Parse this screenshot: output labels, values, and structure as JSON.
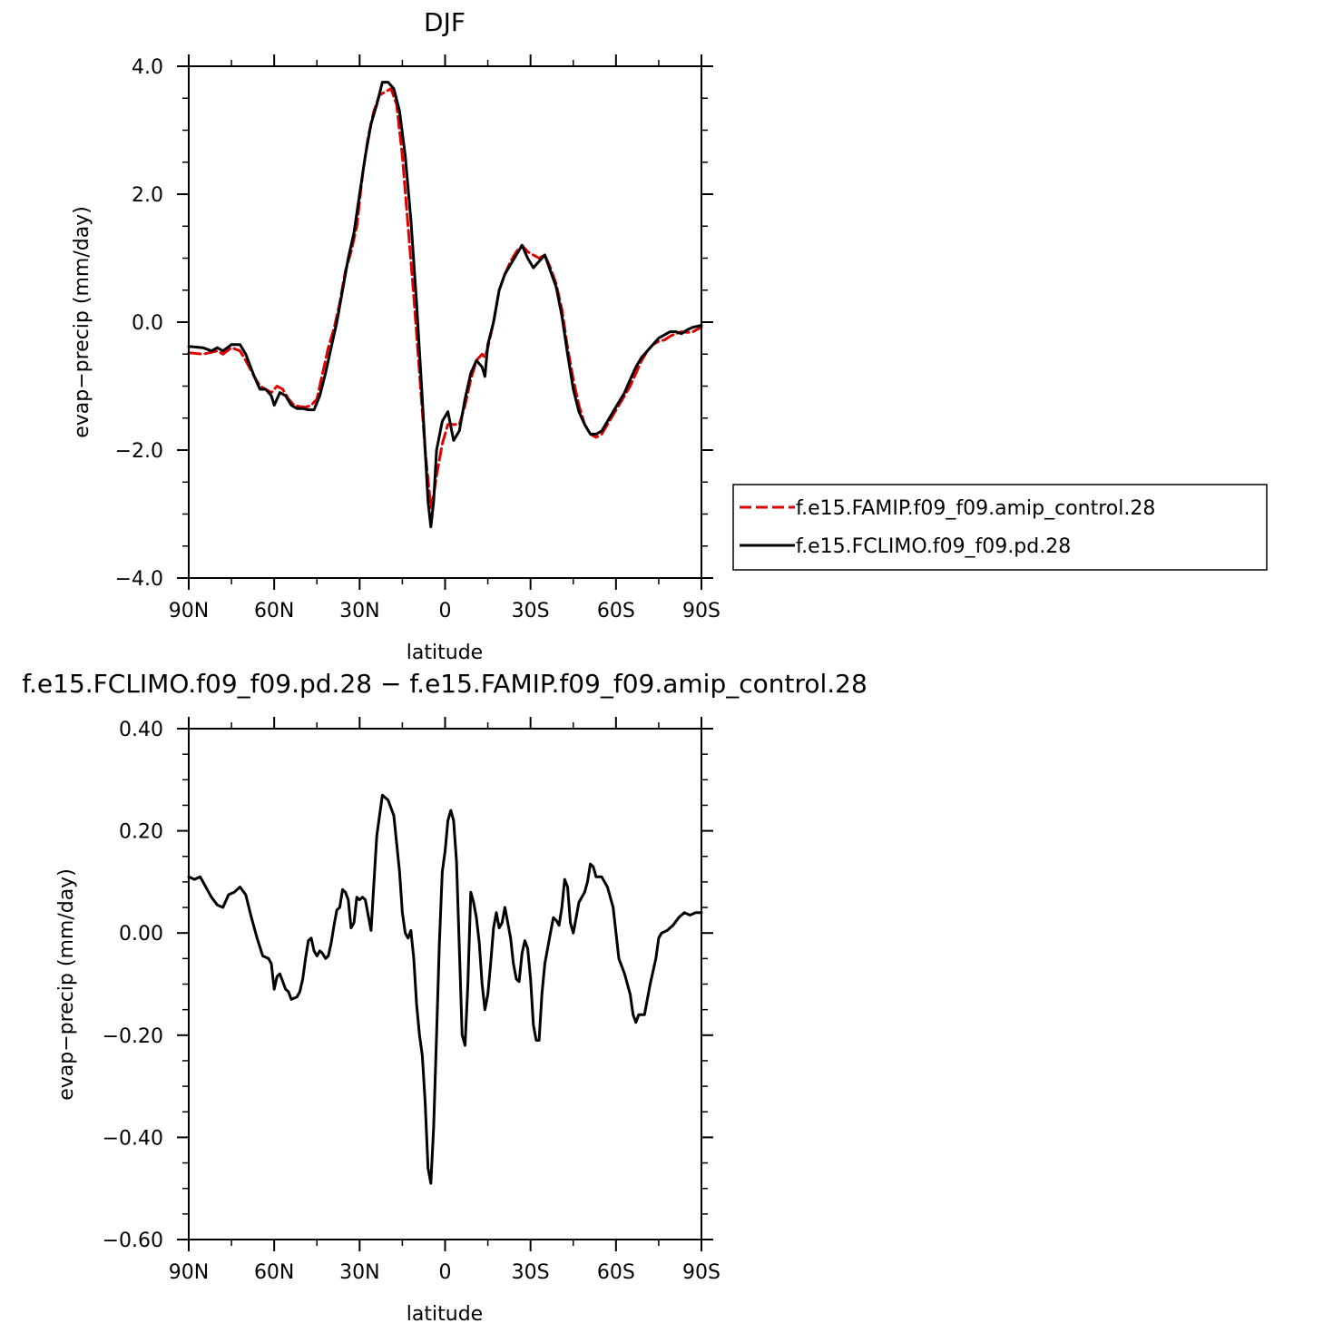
{
  "colors": {
    "background": "#ffffff",
    "axes": "#000000",
    "series_control": "#e00000",
    "series_pd": "#000000"
  },
  "chart_data": [
    {
      "type": "line",
      "title": "DJF",
      "xlabel": "latitude",
      "ylabel": "evap−precip (mm/day)",
      "xlim": [
        -90,
        90
      ],
      "ylim": [
        -4.0,
        4.0
      ],
      "xticks": [
        -90,
        -60,
        -30,
        0,
        30,
        60,
        90
      ],
      "xtick_labels": [
        "90N",
        "60N",
        "30N",
        "0",
        "30S",
        "60S",
        "90S"
      ],
      "yticks": [
        -4,
        -2,
        0,
        2,
        4
      ],
      "ytick_labels": [
        "−4.0",
        "−2.0",
        "0.0",
        "2.0",
        "4.0"
      ],
      "grid": false,
      "legend": "right, outside plot",
      "series": [
        {
          "name": "f.e15.FAMIP.f09_f09.amip_control.28",
          "style": "dashed",
          "color": "#e00000",
          "x": [
            -90,
            -85,
            -80,
            -78,
            -75,
            -72,
            -70,
            -67,
            -65,
            -63,
            -61,
            -59,
            -57,
            -55,
            -53,
            -51,
            -49,
            -47,
            -45,
            -43,
            -41,
            -39,
            -37,
            -35,
            -33,
            -31,
            -29,
            -27,
            -25,
            -23,
            -21,
            -19,
            -17,
            -15,
            -13,
            -11,
            -9,
            -7,
            -5,
            -4,
            -3,
            -1,
            1,
            3,
            5,
            7,
            9,
            11,
            13,
            14,
            15,
            17,
            19,
            21,
            23,
            25,
            27,
            29,
            31,
            33,
            35,
            37,
            39,
            41,
            43,
            45,
            47,
            49,
            51,
            53,
            55,
            57,
            59,
            61,
            63,
            65,
            67,
            69,
            71,
            73,
            75,
            77,
            79,
            81,
            83,
            85,
            87,
            89,
            90
          ],
          "y": [
            -0.48,
            -0.5,
            -0.45,
            -0.5,
            -0.4,
            -0.45,
            -0.6,
            -0.85,
            -1.0,
            -1.05,
            -1.1,
            -1.0,
            -1.05,
            -1.2,
            -1.3,
            -1.32,
            -1.33,
            -1.3,
            -1.2,
            -0.8,
            -0.4,
            -0.1,
            0.3,
            0.8,
            1.1,
            1.5,
            2.3,
            2.9,
            3.3,
            3.55,
            3.6,
            3.65,
            3.4,
            2.6,
            1.5,
            0.4,
            -0.8,
            -2.0,
            -2.9,
            -2.7,
            -2.4,
            -1.9,
            -1.6,
            -1.6,
            -1.6,
            -1.3,
            -0.9,
            -0.6,
            -0.5,
            -0.55,
            -0.4,
            0.0,
            0.5,
            0.75,
            0.95,
            1.1,
            1.2,
            1.1,
            1.05,
            1.0,
            1.05,
            0.85,
            0.6,
            0.2,
            -0.4,
            -0.9,
            -1.3,
            -1.6,
            -1.75,
            -1.8,
            -1.75,
            -1.6,
            -1.45,
            -1.3,
            -1.15,
            -1.0,
            -0.8,
            -0.6,
            -0.45,
            -0.35,
            -0.3,
            -0.28,
            -0.22,
            -0.18,
            -0.15,
            -0.16,
            -0.15,
            -0.1,
            -0.08
          ]
        },
        {
          "name": "f.e15.FCLIMO.f09_f09.pd.28",
          "style": "solid",
          "color": "#000000",
          "x": [
            -90,
            -85,
            -82,
            -80,
            -78,
            -75,
            -72,
            -70,
            -67,
            -65,
            -63,
            -61,
            -60,
            -58,
            -56,
            -54,
            -52,
            -50,
            -48,
            -46,
            -44,
            -42,
            -40,
            -38,
            -36,
            -34,
            -32,
            -30,
            -28,
            -26,
            -24,
            -22,
            -20,
            -18,
            -16,
            -14,
            -12,
            -10,
            -8,
            -6,
            -5,
            -4,
            -3,
            -1,
            1,
            3,
            5,
            7,
            9,
            11,
            13,
            14,
            15,
            17,
            19,
            21,
            23,
            25,
            27,
            29,
            31,
            33,
            35,
            37,
            39,
            41,
            43,
            45,
            47,
            49,
            51,
            53,
            55,
            57,
            59,
            61,
            63,
            65,
            67,
            69,
            71,
            73,
            75,
            77,
            79,
            81,
            83,
            85,
            87,
            89,
            90
          ],
          "y": [
            -0.38,
            -0.4,
            -0.45,
            -0.4,
            -0.45,
            -0.35,
            -0.35,
            -0.5,
            -0.85,
            -1.05,
            -1.05,
            -1.15,
            -1.3,
            -1.1,
            -1.15,
            -1.3,
            -1.35,
            -1.35,
            -1.37,
            -1.37,
            -1.15,
            -0.8,
            -0.4,
            0.0,
            0.5,
            1.0,
            1.4,
            2.0,
            2.6,
            3.1,
            3.4,
            3.75,
            3.75,
            3.65,
            3.3,
            2.6,
            1.6,
            0.3,
            -1.2,
            -2.8,
            -3.2,
            -2.8,
            -2.0,
            -1.55,
            -1.4,
            -1.85,
            -1.7,
            -1.2,
            -0.8,
            -0.6,
            -0.7,
            -0.85,
            -0.35,
            0.0,
            0.5,
            0.75,
            0.9,
            1.05,
            1.2,
            1.0,
            0.85,
            0.95,
            1.05,
            0.8,
            0.55,
            0.1,
            -0.5,
            -1.05,
            -1.4,
            -1.6,
            -1.75,
            -1.75,
            -1.7,
            -1.55,
            -1.4,
            -1.25,
            -1.1,
            -0.9,
            -0.7,
            -0.55,
            -0.45,
            -0.35,
            -0.25,
            -0.2,
            -0.15,
            -0.15,
            -0.18,
            -0.12,
            -0.08,
            -0.06,
            -0.05
          ]
        }
      ]
    },
    {
      "type": "line",
      "title": "f.e15.FCLIMO.f09_f09.pd.28 − f.e15.FAMIP.f09_f09.amip_control.28",
      "xlabel": "latitude",
      "ylabel": "evap−precip (mm/day)",
      "xlim": [
        -90,
        90
      ],
      "ylim": [
        -0.6,
        0.4
      ],
      "xticks": [
        -90,
        -60,
        -30,
        0,
        30,
        60,
        90
      ],
      "xtick_labels": [
        "90N",
        "60N",
        "30N",
        "0",
        "30S",
        "60S",
        "90S"
      ],
      "yticks": [
        -0.6,
        -0.4,
        -0.2,
        0.0,
        0.2,
        0.4
      ],
      "ytick_labels": [
        "−0.60",
        "−0.40",
        "−0.20",
        "0.00",
        "0.20",
        "0.40"
      ],
      "grid": false,
      "legend": "none",
      "series": [
        {
          "style": "solid",
          "color": "#000000",
          "x": [
            -90,
            -88,
            -86,
            -84,
            -82,
            -80,
            -78,
            -76,
            -74,
            -72,
            -70,
            -68,
            -66,
            -64,
            -62,
            -61,
            -60,
            -59,
            -58,
            -57,
            -56,
            -55,
            -54,
            -52,
            -51,
            -50,
            -49,
            -48,
            -47,
            -46,
            -45,
            -44,
            -43,
            -42,
            -41,
            -40,
            -39,
            -38,
            -37,
            -36,
            -35,
            -34,
            -33,
            -32,
            -31,
            -30,
            -29,
            -28,
            -26,
            -24,
            -22,
            -20,
            -18,
            -16,
            -15,
            -14,
            -13,
            -12,
            -11,
            -10,
            -9,
            -8,
            -7,
            -6,
            -5,
            -4,
            -3,
            -2,
            -1,
            0,
            1,
            2,
            3,
            4,
            5,
            6,
            7,
            8,
            9,
            10,
            11,
            12,
            13,
            14,
            15,
            16,
            17,
            18,
            19,
            20,
            21,
            22,
            23,
            24,
            25,
            26,
            27,
            28,
            29,
            30,
            31,
            32,
            33,
            34,
            35,
            36,
            37,
            38,
            39,
            40,
            41,
            42,
            43,
            44,
            45,
            46,
            47,
            48,
            49,
            50,
            51,
            52,
            53,
            55,
            57,
            59,
            61,
            63,
            65,
            66,
            67,
            68,
            70,
            72,
            74,
            75,
            76,
            78,
            80,
            82,
            84,
            86,
            88,
            90
          ],
          "y": [
            0.11,
            0.105,
            0.11,
            0.09,
            0.07,
            0.055,
            0.05,
            0.075,
            0.08,
            0.09,
            0.075,
            0.03,
            -0.01,
            -0.045,
            -0.05,
            -0.06,
            -0.11,
            -0.085,
            -0.08,
            -0.095,
            -0.11,
            -0.115,
            -0.13,
            -0.125,
            -0.115,
            -0.09,
            -0.05,
            -0.015,
            -0.01,
            -0.035,
            -0.045,
            -0.035,
            -0.04,
            -0.05,
            -0.045,
            -0.02,
            0.015,
            0.045,
            0.05,
            0.085,
            0.08,
            0.065,
            0.01,
            0.02,
            0.07,
            0.065,
            0.07,
            0.065,
            0.005,
            0.19,
            0.27,
            0.26,
            0.23,
            0.12,
            0.04,
            0.0,
            -0.01,
            0.005,
            -0.05,
            -0.14,
            -0.2,
            -0.24,
            -0.33,
            -0.46,
            -0.49,
            -0.38,
            -0.2,
            -0.02,
            0.12,
            0.16,
            0.22,
            0.24,
            0.22,
            0.14,
            -0.03,
            -0.2,
            -0.22,
            -0.1,
            0.08,
            0.06,
            0.03,
            -0.02,
            -0.1,
            -0.15,
            -0.12,
            -0.06,
            0.01,
            0.04,
            0.01,
            0.02,
            0.05,
            0.02,
            -0.01,
            -0.06,
            -0.09,
            -0.095,
            -0.04,
            -0.015,
            -0.03,
            -0.09,
            -0.18,
            -0.21,
            -0.21,
            -0.12,
            -0.06,
            -0.03,
            0.0,
            0.03,
            0.025,
            0.015,
            0.05,
            0.105,
            0.09,
            0.02,
            0.0,
            0.03,
            0.06,
            0.07,
            0.08,
            0.1,
            0.135,
            0.13,
            0.11,
            0.11,
            0.09,
            0.05,
            -0.05,
            -0.08,
            -0.12,
            -0.16,
            -0.175,
            -0.16,
            -0.16,
            -0.1,
            -0.05,
            -0.01,
            0.0,
            0.005,
            0.015,
            0.03,
            0.04,
            0.035,
            0.04,
            0.04
          ]
        }
      ]
    }
  ]
}
